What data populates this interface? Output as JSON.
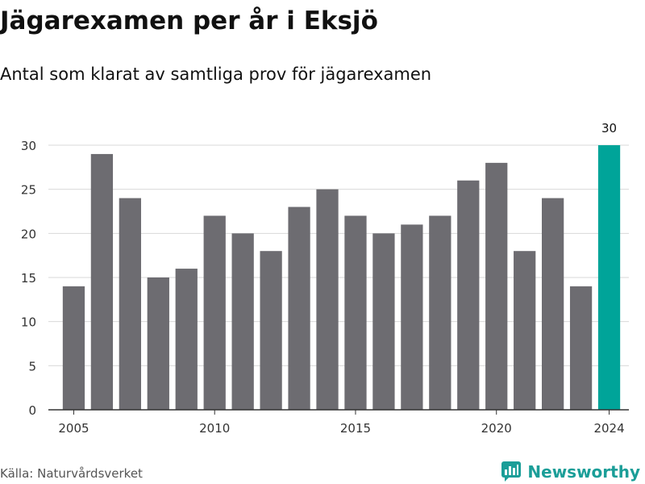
{
  "title": "Jägarexamen per år i Eksjö",
  "subtitle": "Antal som klarat av samtliga prov för jägarexamen",
  "source": "Källa: Naturvårdsverket",
  "brand": {
    "name": "Newsworthy",
    "icon": "newsworthy-logo-icon"
  },
  "colors": {
    "bar": "#6d6c71",
    "highlight": "#00a499",
    "grid": "#d9d9d9",
    "axis": "#333333",
    "brand": "#1b9e98"
  },
  "chart_data": {
    "type": "bar",
    "x": [
      2005,
      2006,
      2007,
      2008,
      2009,
      2010,
      2011,
      2012,
      2013,
      2014,
      2015,
      2016,
      2017,
      2018,
      2019,
      2020,
      2021,
      2022,
      2023,
      2024
    ],
    "values": [
      14,
      29,
      24,
      15,
      16,
      22,
      20,
      18,
      23,
      25,
      22,
      20,
      21,
      22,
      26,
      28,
      18,
      24,
      14,
      30
    ],
    "xticks": [
      "2005",
      "2010",
      "2015",
      "2020",
      "2024"
    ],
    "yticks": [
      0,
      5,
      10,
      15,
      20,
      25,
      30
    ],
    "ylim": [
      0,
      30
    ],
    "highlight_x": 2024,
    "data_labels": [
      {
        "x": 2024,
        "text": "30"
      }
    ],
    "xlabel": "",
    "ylabel": "",
    "grid": true,
    "legend": false
  }
}
